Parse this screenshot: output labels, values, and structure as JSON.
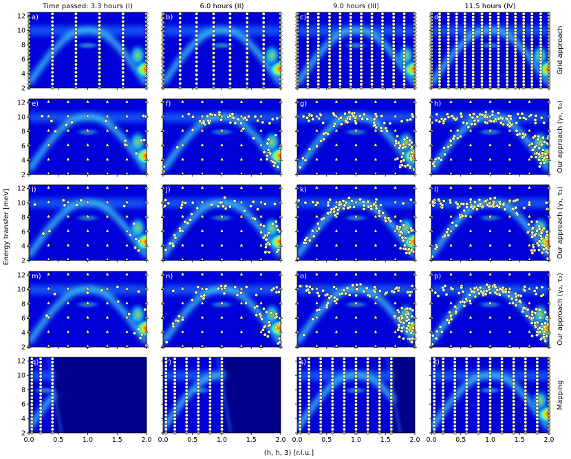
{
  "chart_data": {
    "type": "heatmap",
    "description": "Grid of 5x4 intensity maps with sample points (energy transfer vs (h,h,3))",
    "columns": [
      "Time passed: 3.3 hours (I)",
      "6.0 hours (II)",
      "9.0 hours (III)",
      "11.5 hours (IV)"
    ],
    "rows": [
      "Grid approach",
      "Our approach (γ₀, τ₀)",
      "Our approach (γ₁, τ₁)",
      "Our approach (γ₂, τ₂)",
      "Mapping"
    ],
    "panel_labels": [
      "a)",
      "b)",
      "c)",
      "d)",
      "e)",
      "f)",
      "g)",
      "h)",
      "i)",
      "j)",
      "k)",
      "l)",
      "m)",
      "n)",
      "o)",
      "p)",
      "q)",
      "r)",
      "s)",
      "t)"
    ],
    "xlabel": "(h, h, 3) [r.l.u.]",
    "ylabel": "Energy transfer [meV]",
    "xlim": [
      0,
      2
    ],
    "ylim": [
      2,
      12.5
    ],
    "xticks": [
      0.0,
      0.5,
      1.0,
      1.5,
      2.0
    ],
    "xtick_labels": [
      "0.0",
      "0.5",
      "1.0",
      "1.5",
      "2.0"
    ],
    "yticks": [
      2,
      4,
      6,
      8,
      10,
      12
    ],
    "ytick_labels": [
      "2",
      "4",
      "6",
      "8",
      "10",
      "12"
    ],
    "colormap": "jet",
    "grid_columns_x": [
      [
        0.0,
        0.4,
        0.8,
        1.2,
        1.6,
        2.0
      ],
      [
        0.0,
        0.29,
        0.57,
        0.86,
        1.14,
        1.43,
        1.71,
        2.0
      ],
      [
        0.0,
        0.18,
        0.36,
        0.55,
        0.73,
        0.91,
        1.09,
        1.27,
        1.45,
        1.64,
        1.82,
        2.0
      ],
      [
        0.0,
        0.14,
        0.29,
        0.43,
        0.57,
        0.71,
        0.86,
        1.0,
        1.14,
        1.29,
        1.43,
        1.57,
        1.71,
        1.86,
        2.0
      ]
    ],
    "mapping_columns_x": [
      [
        0.05,
        0.2,
        0.4
      ],
      [
        0.05,
        0.2,
        0.4,
        0.6,
        0.8,
        1.0
      ],
      [
        0.05,
        0.2,
        0.4,
        0.6,
        0.8,
        1.0,
        1.2,
        1.4,
        1.6
      ],
      [
        0.05,
        0.2,
        0.4,
        0.6,
        0.8,
        1.0,
        1.2,
        1.4,
        1.6,
        1.8,
        2.0
      ]
    ],
    "dispersion": "E(h) = 2.6 + 7.5*|sin(pi*h/2)| plus flat band near 10 meV"
  }
}
